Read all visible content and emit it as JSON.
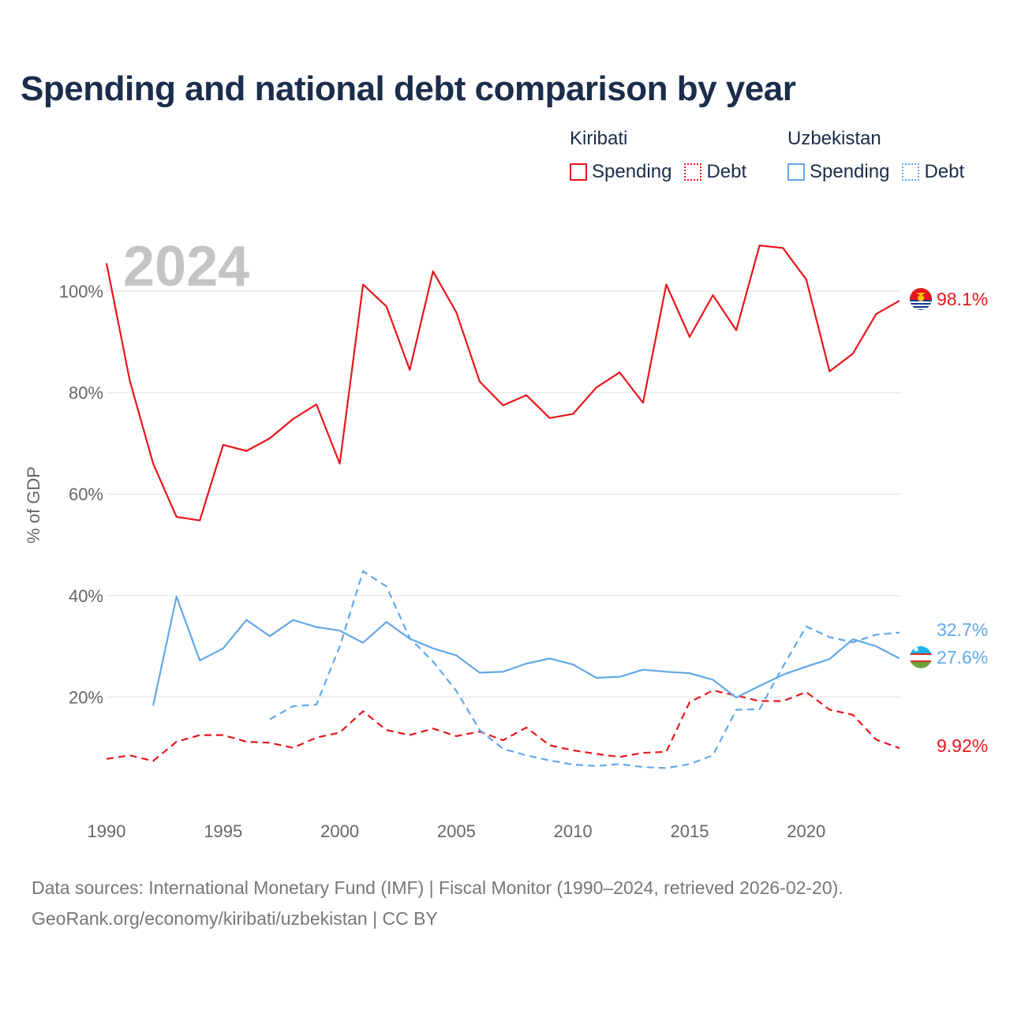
{
  "title": "Spending and national debt comparison by year",
  "legend": {
    "groups": [
      {
        "country": "Kiribati",
        "items": [
          {
            "label": "Spending",
            "style": "solid",
            "color": "#e8161b"
          },
          {
            "label": "Debt",
            "style": "dotted",
            "color": "#e8161b"
          }
        ]
      },
      {
        "country": "Uzbekistan",
        "items": [
          {
            "label": "Spending",
            "style": "solid",
            "color": "#62a8e8"
          },
          {
            "label": "Debt",
            "style": "dotted",
            "color": "#62a8e8"
          }
        ]
      }
    ]
  },
  "footer": {
    "line1": "Data sources: International Monetary Fund (IMF) | Fiscal Monitor (1990–2024, retrieved 2026-02-20).",
    "line2": "GeoRank.org/economy/kiribati/uzbekistan | CC BY"
  },
  "chart_data": {
    "type": "line",
    "title": "Spending and national debt comparison by year",
    "year_watermark": "2024",
    "xlabel": "",
    "ylabel": "% of GDP",
    "xlim": [
      1990,
      2024
    ],
    "ylim": [
      0,
      110
    ],
    "x_ticks": [
      1990,
      1995,
      2000,
      2005,
      2010,
      2015,
      2020
    ],
    "x_tick_labels": [
      "1990",
      "1995",
      "2000",
      "2005",
      "2010",
      "2015",
      "2020"
    ],
    "y_ticks": [
      20,
      40,
      60,
      80,
      100
    ],
    "y_tick_labels": [
      "20%",
      "40%",
      "60%",
      "80%",
      "100%"
    ],
    "grid": true,
    "series": [
      {
        "name": "Kiribati Spending",
        "country": "Kiribati",
        "style": "solid",
        "color": "#e8161b",
        "end_label": "98.1%",
        "points": [
          [
            1990,
            105.5
          ],
          [
            1991,
            82.3
          ],
          [
            1992,
            66.0
          ],
          [
            1993,
            55.5
          ],
          [
            1994,
            54.8
          ],
          [
            1995,
            69.7
          ],
          [
            1996,
            68.5
          ],
          [
            1997,
            71.0
          ],
          [
            1998,
            74.8
          ],
          [
            1999,
            77.7
          ],
          [
            2000,
            66.0
          ],
          [
            2001,
            101.3
          ],
          [
            2002,
            97.0
          ],
          [
            2003,
            84.5
          ],
          [
            2004,
            103.9
          ],
          [
            2005,
            95.8
          ],
          [
            2006,
            82.2
          ],
          [
            2007,
            77.5
          ],
          [
            2008,
            79.5
          ],
          [
            2009,
            75.0
          ],
          [
            2010,
            75.8
          ],
          [
            2011,
            81.0
          ],
          [
            2012,
            84.0
          ],
          [
            2013,
            78.0
          ],
          [
            2014,
            101.3
          ],
          [
            2015,
            91.0
          ],
          [
            2016,
            99.2
          ],
          [
            2017,
            92.3
          ],
          [
            2018,
            109.0
          ],
          [
            2019,
            108.5
          ],
          [
            2020,
            102.3
          ],
          [
            2021,
            84.2
          ],
          [
            2022,
            87.7
          ],
          [
            2023,
            95.5
          ],
          [
            2024,
            98.1
          ]
        ]
      },
      {
        "name": "Kiribati Debt",
        "country": "Kiribati",
        "style": "dashed",
        "color": "#e8161b",
        "end_label": "9.92%",
        "points": [
          [
            1990,
            7.8
          ],
          [
            1991,
            8.5
          ],
          [
            1992,
            7.4
          ],
          [
            1993,
            11.2
          ],
          [
            1994,
            12.5
          ],
          [
            1995,
            12.5
          ],
          [
            1996,
            11.2
          ],
          [
            1997,
            11.0
          ],
          [
            1998,
            10.0
          ],
          [
            1999,
            12.0
          ],
          [
            2000,
            13.0
          ],
          [
            2001,
            17.2
          ],
          [
            2002,
            13.5
          ],
          [
            2003,
            12.5
          ],
          [
            2004,
            13.8
          ],
          [
            2005,
            12.3
          ],
          [
            2006,
            13.2
          ],
          [
            2007,
            11.5
          ],
          [
            2008,
            14.0
          ],
          [
            2009,
            10.5
          ],
          [
            2010,
            9.5
          ],
          [
            2011,
            8.8
          ],
          [
            2012,
            8.2
          ],
          [
            2013,
            9.0
          ],
          [
            2014,
            9.2
          ],
          [
            2015,
            19.0
          ],
          [
            2016,
            21.3
          ],
          [
            2017,
            20.3
          ],
          [
            2018,
            19.2
          ],
          [
            2019,
            19.2
          ],
          [
            2020,
            21.0
          ],
          [
            2021,
            17.5
          ],
          [
            2022,
            16.5
          ],
          [
            2023,
            11.6
          ],
          [
            2024,
            9.92
          ]
        ]
      },
      {
        "name": "Uzbekistan Spending",
        "country": "Uzbekistan",
        "style": "solid",
        "color": "#62a8e8",
        "end_label": "27.6%",
        "points": [
          [
            1992,
            18.3
          ],
          [
            1993,
            39.8
          ],
          [
            1994,
            27.2
          ],
          [
            1995,
            29.6
          ],
          [
            1996,
            35.2
          ],
          [
            1997,
            32.0
          ],
          [
            1998,
            35.2
          ],
          [
            1999,
            33.8
          ],
          [
            2000,
            33.1
          ],
          [
            2001,
            30.7
          ],
          [
            2002,
            34.8
          ],
          [
            2003,
            31.5
          ],
          [
            2004,
            29.6
          ],
          [
            2005,
            28.2
          ],
          [
            2006,
            24.8
          ],
          [
            2007,
            25.0
          ],
          [
            2008,
            26.6
          ],
          [
            2009,
            27.6
          ],
          [
            2010,
            26.4
          ],
          [
            2011,
            23.8
          ],
          [
            2012,
            24.0
          ],
          [
            2013,
            25.4
          ],
          [
            2014,
            25.0
          ],
          [
            2015,
            24.7
          ],
          [
            2016,
            23.4
          ],
          [
            2017,
            19.9
          ],
          [
            2018,
            22.2
          ],
          [
            2019,
            24.4
          ],
          [
            2020,
            26.0
          ],
          [
            2021,
            27.5
          ],
          [
            2022,
            31.4
          ],
          [
            2023,
            30.0
          ],
          [
            2024,
            27.6
          ]
        ]
      },
      {
        "name": "Uzbekistan Debt",
        "country": "Uzbekistan",
        "style": "dashed",
        "color": "#62a8e8",
        "end_label": "32.7%",
        "points": [
          [
            1997,
            15.6
          ],
          [
            1998,
            18.2
          ],
          [
            1999,
            18.5
          ],
          [
            2000,
            30.0
          ],
          [
            2001,
            44.8
          ],
          [
            2002,
            41.8
          ],
          [
            2003,
            31.6
          ],
          [
            2004,
            27.0
          ],
          [
            2005,
            21.2
          ],
          [
            2006,
            13.5
          ],
          [
            2007,
            9.8
          ],
          [
            2008,
            8.5
          ],
          [
            2009,
            7.5
          ],
          [
            2010,
            6.7
          ],
          [
            2011,
            6.4
          ],
          [
            2012,
            6.8
          ],
          [
            2013,
            6.2
          ],
          [
            2014,
            6.0
          ],
          [
            2015,
            6.8
          ],
          [
            2016,
            8.5
          ],
          [
            2017,
            17.5
          ],
          [
            2018,
            17.6
          ],
          [
            2019,
            26.0
          ],
          [
            2020,
            33.9
          ],
          [
            2021,
            31.8
          ],
          [
            2022,
            30.8
          ],
          [
            2023,
            32.3
          ],
          [
            2024,
            32.7
          ]
        ]
      }
    ]
  }
}
